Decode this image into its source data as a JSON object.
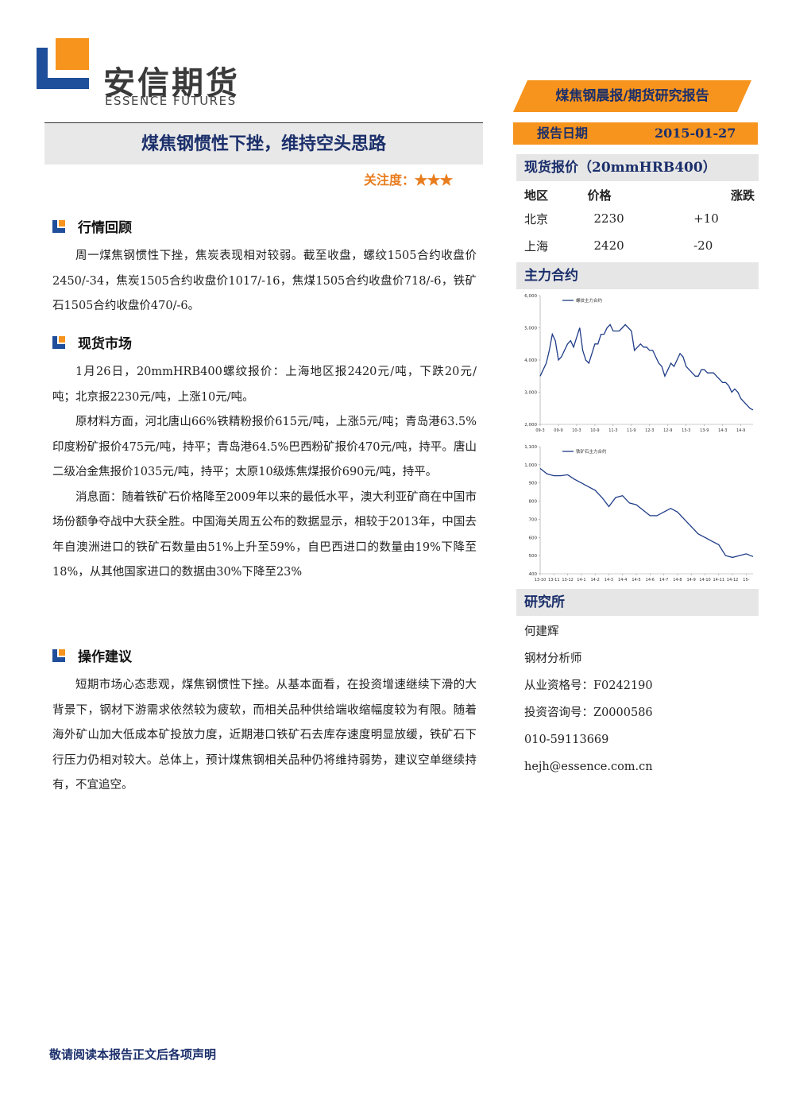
{
  "header": {
    "logo_cn": "安信期货",
    "logo_en": "ESSENCE FUTURES",
    "report_type": "煤焦钢晨报/期货研究报告",
    "date_label": "报告日期",
    "date": "2015-01-27"
  },
  "title": "煤焦钢惯性下挫，维持空头思路",
  "attention_label": "关注度：",
  "attention_stars": "★★★",
  "sections": [
    {
      "heading": "行情回顾",
      "paragraphs": [
        "周一煤焦钢惯性下挫，焦炭表现相对较弱。截至收盘，螺纹1505合约收盘价2450/-34，焦炭1505合约收盘价1017/-16，焦煤1505合约收盘价718/-6，铁矿石1505合约收盘价470/-6。"
      ]
    },
    {
      "heading": "现货市场",
      "paragraphs": [
        "1月26日，20mmHRB400螺纹报价：上海地区报2420元/吨，下跌20元/吨；北京报2230元/吨，上涨10元/吨。",
        "原材料方面，河北唐山66%铁精粉报价615元/吨，上涨5元/吨；青岛港63.5%印度粉矿报价475元/吨，持平；青岛港64.5%巴西粉矿报价470元/吨，持平。唐山二级冶金焦报价1035元/吨，持平；太原10级炼焦煤报价690元/吨，持平。",
        "消息面：随着铁矿石价格降至2009年以来的最低水平，澳大利亚矿商在中国市场份额争夺战中大获全胜。中国海关周五公布的数据显示，相较于2013年，中国去年自澳洲进口的铁矿石数量由51%上升至59%，自巴西进口的数量由19%下降至18%，从其他国家进口的数据由30%下降至23%"
      ]
    },
    {
      "heading": "操作建议",
      "paragraphs": [
        "短期市场心态悲观，煤焦钢惯性下挫。从基本面看，在投资增速继续下滑的大背景下，钢材下游需求依然较为疲软，而相关品种供给端收缩幅度较为有限。随着海外矿山加大低成本矿投放力度，近期港口铁矿石去库存速度明显放缓，铁矿石下行压力仍相对较大。总体上，预计煤焦钢相关品种仍将维持弱势，建议空单继续持有，不宜追空。"
      ]
    }
  ],
  "spot": {
    "title": "现货报价（20mmHRB400）",
    "columns": [
      "地区",
      "价格",
      "涨跌"
    ],
    "rows": [
      [
        "北京",
        2230,
        "+10"
      ],
      [
        "上海",
        2420,
        "-20"
      ]
    ]
  },
  "main_contract_title": "主力合约",
  "chart_data": [
    {
      "type": "line",
      "categories": [
        "09-3",
        null,
        null,
        null,
        null,
        null,
        "09-9",
        null,
        null,
        null,
        null,
        null,
        "10-3",
        null,
        null,
        null,
        null,
        null,
        "10-9",
        null,
        null,
        null,
        null,
        null,
        "11-3",
        null,
        null,
        null,
        null,
        null,
        "11-9",
        null,
        null,
        null,
        null,
        null,
        "12-3",
        null,
        null,
        null,
        null,
        null,
        "12-9",
        null,
        null,
        null,
        null,
        null,
        "13-3",
        null,
        null,
        null,
        null,
        null,
        "13-9",
        null,
        null,
        null,
        null,
        null,
        "14-3",
        null,
        null,
        null,
        null,
        null,
        "14-9",
        null,
        null,
        null,
        null
      ],
      "series": [
        {
          "name": "螺纹主力合约",
          "color": "#1f3c88",
          "values": [
            3500,
            3700,
            3900,
            4300,
            4800,
            4600,
            4000,
            4100,
            4300,
            4500,
            4600,
            4400,
            4700,
            5000,
            4300,
            4000,
            3900,
            4200,
            4500,
            4500,
            4800,
            4800,
            5000,
            5100,
            4900,
            4900,
            4900,
            5000,
            5100,
            5000,
            4900,
            4300,
            4400,
            4500,
            4400,
            4400,
            4300,
            4300,
            4100,
            3900,
            3800,
            3500,
            3700,
            3900,
            3800,
            4000,
            4200,
            4100,
            3800,
            3700,
            3600,
            3500,
            3500,
            3700,
            3700,
            3600,
            3600,
            3600,
            3500,
            3400,
            3300,
            3300,
            3200,
            3000,
            3100,
            3000,
            2800,
            2700,
            2600,
            2500,
            2450
          ]
        }
      ],
      "ylim": [
        2000,
        6000
      ],
      "yticks": [
        {
          "value": 2000,
          "label": "2,000"
        },
        {
          "value": 3000,
          "label": "3,000"
        },
        {
          "value": 4000,
          "label": "4,000"
        },
        {
          "value": 5000,
          "label": "5,000"
        },
        {
          "value": 6000,
          "label": "6,000"
        }
      ]
    },
    {
      "type": "line",
      "categories": [
        "13-10",
        null,
        "13-11",
        null,
        "13-12",
        null,
        "14-1",
        null,
        "14-2",
        null,
        "14-3",
        null,
        "14-4",
        null,
        "14-5",
        null,
        "14-6",
        null,
        "14-7",
        null,
        "14-8",
        null,
        "14-9",
        null,
        "14-10",
        null,
        "14-11",
        null,
        "14-12",
        null,
        "15-",
        null
      ],
      "series": [
        {
          "name": "铁矿石主力合约",
          "color": "#1f3c88",
          "values": [
            980,
            950,
            940,
            940,
            945,
            920,
            900,
            880,
            860,
            820,
            770,
            820,
            830,
            790,
            780,
            750,
            720,
            720,
            740,
            760,
            740,
            700,
            660,
            620,
            600,
            580,
            560,
            500,
            490,
            500,
            510,
            495
          ]
        }
      ],
      "ylim": [
        400,
        1100
      ],
      "yticks": [
        400,
        500,
        600,
        700,
        800,
        900,
        {
          "value": 1000,
          "label": "1,000"
        },
        {
          "value": 1100,
          "label": "1,100"
        }
      ]
    }
  ],
  "research": {
    "title": "研究所",
    "lines": [
      "何建辉",
      "钢材分析师",
      "从业资格号：F0242190",
      "投资咨询号：Z0000586",
      "010-59113669",
      "hejh@essence.com.cn"
    ]
  },
  "footer": "敬请阅读本报告正文后各项声明"
}
